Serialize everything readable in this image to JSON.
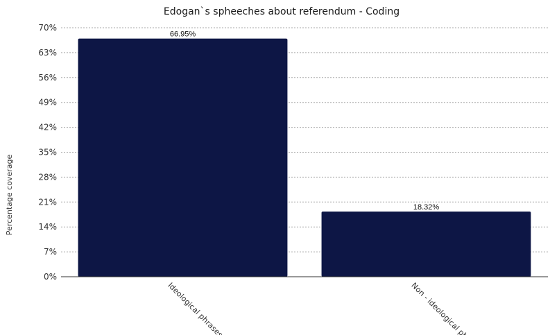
{
  "chart_data": {
    "type": "bar",
    "title": "Edogan`s spheeches about referendum - Coding",
    "xlabel": "",
    "ylabel": "Percentage coverage",
    "categories": [
      "Ideological phrases",
      "Non - ideological ph"
    ],
    "values": [
      66.95,
      18.32
    ],
    "data_labels": [
      "66.95%",
      "18.32%"
    ],
    "ylim": [
      0,
      70
    ],
    "y_ticks": [
      0,
      7,
      14,
      21,
      28,
      35,
      42,
      49,
      56,
      63,
      70
    ],
    "y_tick_labels": [
      "0%",
      "7%",
      "14%",
      "21%",
      "28%",
      "35%",
      "42%",
      "49%",
      "56%",
      "63%",
      "70%"
    ],
    "grid": true,
    "legend": "none",
    "bar_color": "#0d1645"
  }
}
